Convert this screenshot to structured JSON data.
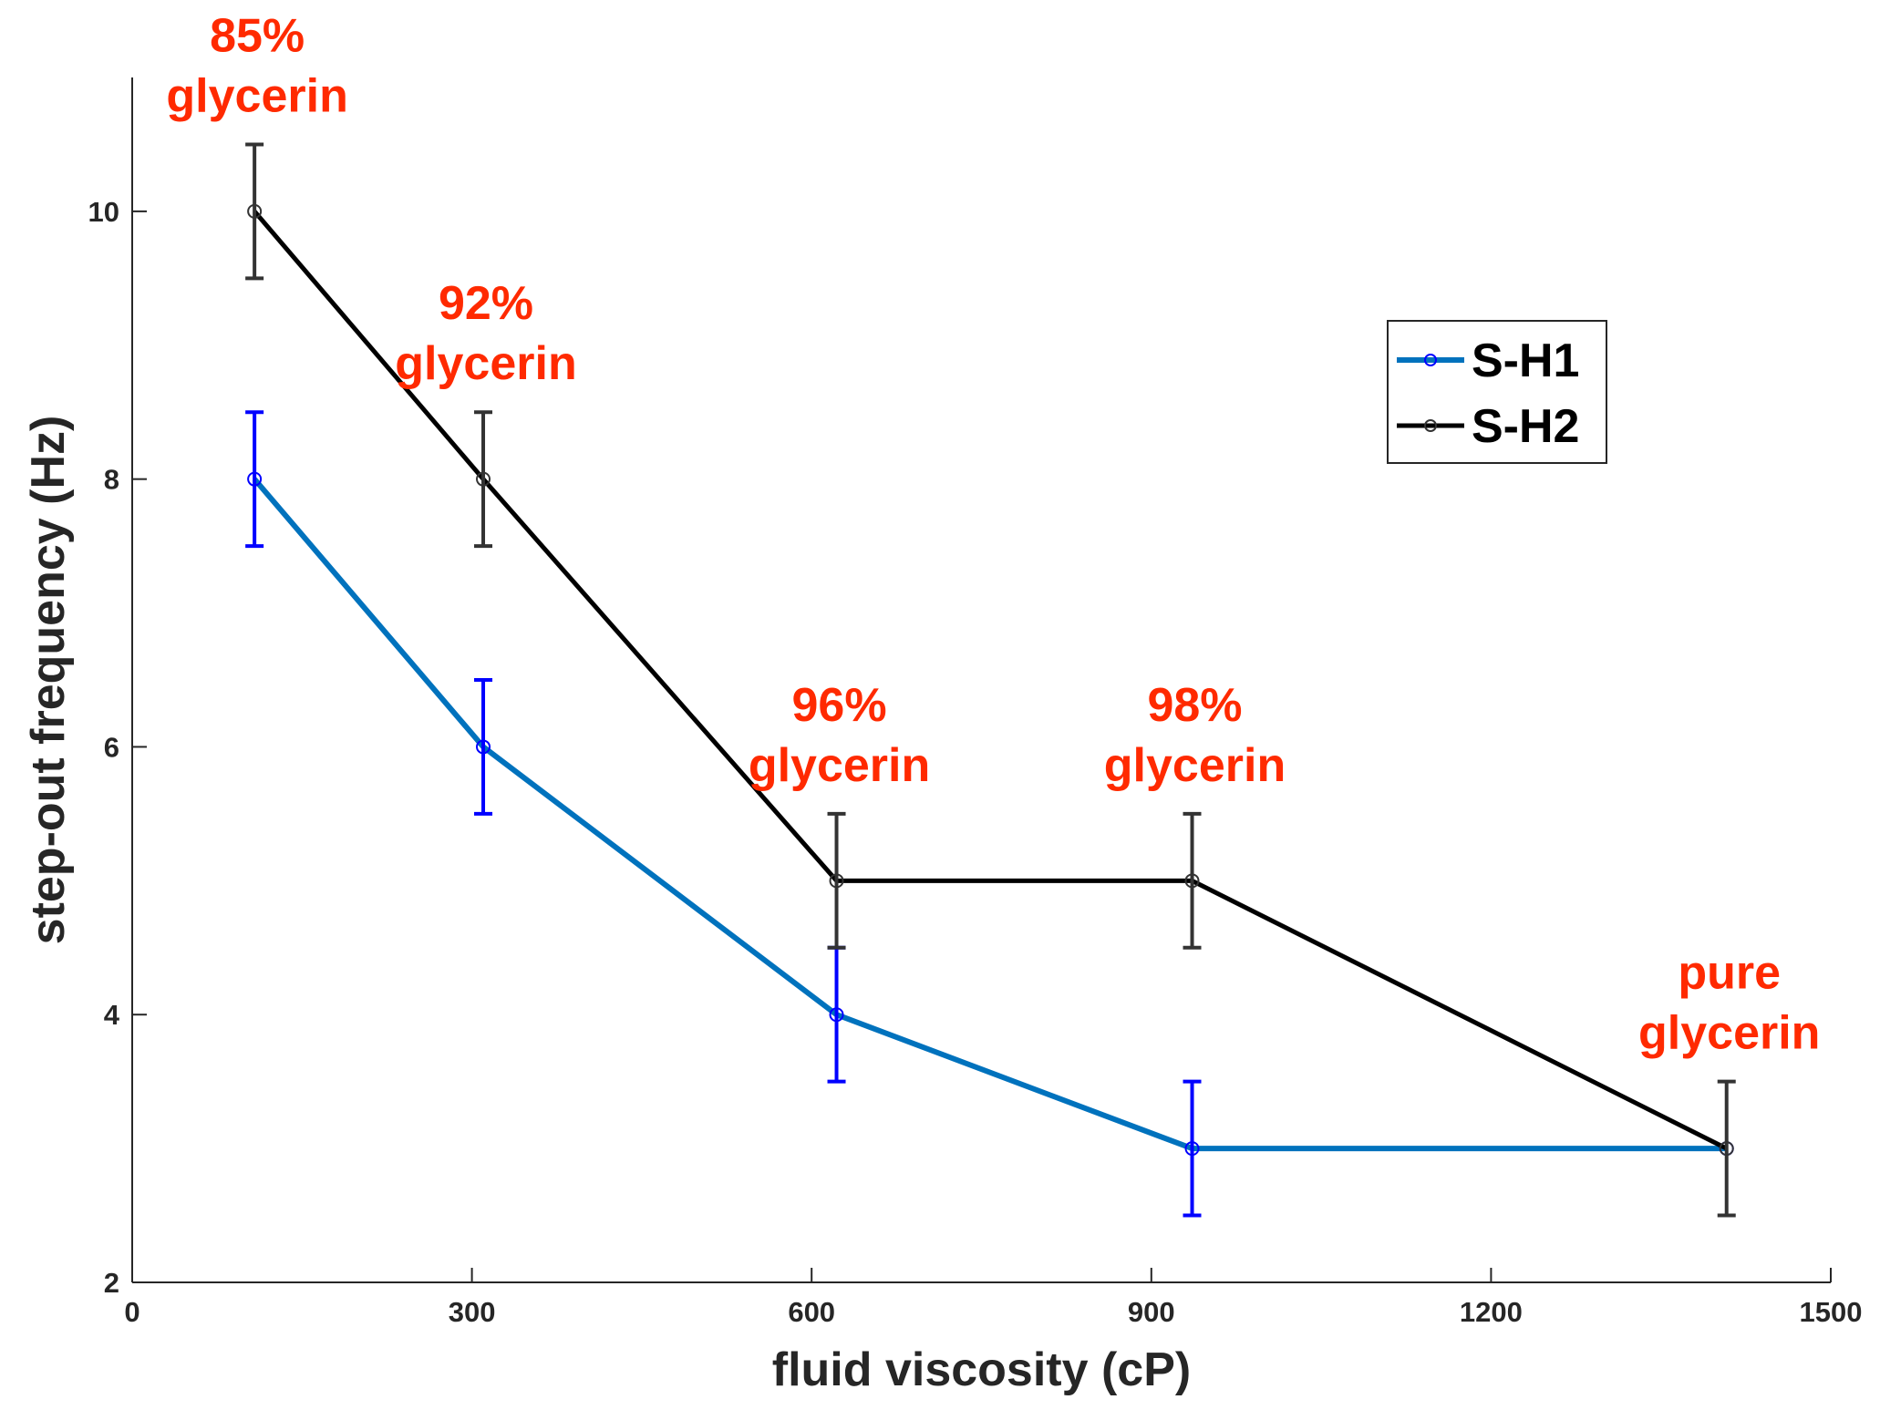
{
  "chart_data": {
    "type": "line",
    "title": "",
    "xlabel": "fluid viscosity (cP)",
    "ylabel": "step-out frequency (Hz)",
    "xlim": [
      0,
      1500
    ],
    "ylim": [
      2,
      11
    ],
    "xticks": [
      0,
      300,
      600,
      900,
      1200,
      1500
    ],
    "yticks": [
      2,
      4,
      6,
      8,
      10
    ],
    "grid": false,
    "legend_position": "upper-right",
    "series": [
      {
        "name": "S-H1",
        "color": "#0072BD",
        "errorbar_color": "#0000FF",
        "x": [
          108,
          310,
          622,
          936,
          1408
        ],
        "y": [
          8,
          6,
          4,
          3,
          3
        ],
        "error": [
          0.5,
          0.5,
          0.5,
          0.5,
          0
        ]
      },
      {
        "name": "S-H2",
        "color": "#000000",
        "errorbar_color": "#333333",
        "x": [
          108,
          310,
          622,
          936,
          1408
        ],
        "y": [
          10,
          8,
          5,
          5,
          3
        ],
        "error": [
          0.5,
          0.5,
          0.5,
          0.5,
          0.5
        ]
      }
    ],
    "annotations": [
      {
        "lines": [
          "85%",
          "glycerin"
        ],
        "x": 108,
        "y": 10.5
      },
      {
        "lines": [
          "92%",
          "glycerin"
        ],
        "x": 310,
        "y": 8.5
      },
      {
        "lines": [
          "96%",
          "glycerin"
        ],
        "x": 622,
        "y": 5.5
      },
      {
        "lines": [
          "98%",
          "glycerin"
        ],
        "x": 936,
        "y": 5.5
      },
      {
        "lines": [
          "pure",
          "glycerin"
        ],
        "x": 1408,
        "y": 3.5
      }
    ],
    "annotation_color": "#FF2A00"
  }
}
